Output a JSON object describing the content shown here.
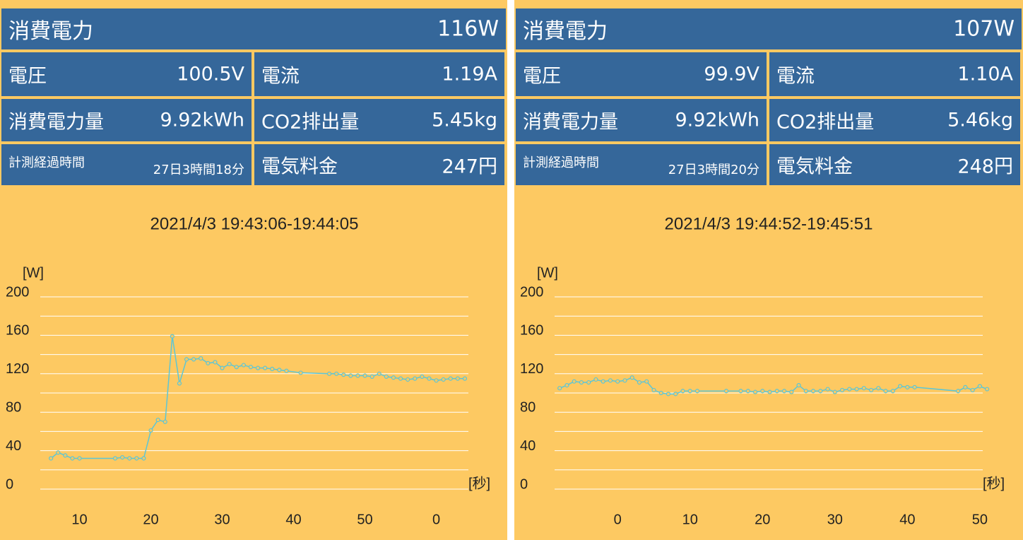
{
  "panels": [
    {
      "power": {
        "label": "消費電力",
        "value": "116W"
      },
      "tiles": [
        {
          "label": "電圧",
          "value": "100.5V"
        },
        {
          "label": "電流",
          "value": "1.19A"
        },
        {
          "label": "消費電力量",
          "value": "9.92kWh"
        },
        {
          "label": "CO2排出量",
          "value": "5.45kg"
        },
        {
          "label": "計測経過時間",
          "value": "27日3時間18分"
        },
        {
          "label": "電気料金",
          "value": "247円"
        }
      ]
    },
    {
      "power": {
        "label": "消費電力",
        "value": "107W"
      },
      "tiles": [
        {
          "label": "電圧",
          "value": "99.9V"
        },
        {
          "label": "電流",
          "value": "1.10A"
        },
        {
          "label": "消費電力量",
          "value": "9.92kWh"
        },
        {
          "label": "CO2排出量",
          "value": "5.46kg"
        },
        {
          "label": "計測経過時間",
          "value": "27日3時間20分"
        },
        {
          "label": "電気料金",
          "value": "248円"
        }
      ]
    }
  ],
  "chart_data": [
    {
      "type": "line",
      "title": "2021/4/3 19:43:06-19:44:05",
      "ylabel": "[W]",
      "xlabel": "[秒]",
      "color": "#5cc6d6",
      "x": [
        6,
        7,
        8,
        9,
        10,
        15,
        16,
        17,
        18,
        19,
        20,
        21,
        22,
        23,
        24,
        25,
        26,
        27,
        28,
        29,
        30,
        31,
        32,
        33,
        34,
        35,
        36,
        37,
        38,
        39,
        41,
        45,
        46,
        47,
        48,
        49,
        50,
        51,
        52,
        53,
        54,
        55,
        56,
        57,
        58,
        59,
        60,
        61,
        62,
        63,
        64
      ],
      "values": [
        32,
        38,
        35,
        32,
        32,
        32,
        33,
        32,
        32,
        32,
        61,
        72,
        70,
        159,
        110,
        135,
        135,
        136,
        131,
        132,
        126,
        130,
        127,
        129,
        127,
        126,
        126,
        125,
        124,
        123,
        121,
        120,
        120,
        119,
        118,
        118,
        118,
        117,
        120,
        117,
        116,
        115,
        114,
        115,
        117,
        115,
        113,
        114,
        115,
        115,
        115
      ],
      "xlim": [
        4.5,
        64.5
      ],
      "xticks": [
        10,
        20,
        30,
        40,
        50,
        {
          "value": 60,
          "label": "0"
        }
      ],
      "ylim": [
        0,
        200
      ],
      "yticks": [
        0,
        40,
        80,
        120,
        160,
        200
      ],
      "ygrid": [
        0,
        20,
        40,
        60,
        80,
        100,
        120,
        140,
        160,
        180,
        200
      ]
    },
    {
      "type": "line",
      "title": "2021/4/3 19:44:52-19:45:51",
      "ylabel": "[W]",
      "xlabel": "[秒]",
      "color": "#5cc6d6",
      "x": [
        -8,
        -7,
        -6,
        -5,
        -4,
        -3,
        -2,
        -1,
        0,
        1,
        2,
        3,
        4,
        5,
        6,
        7,
        8,
        9,
        10,
        11,
        15,
        17,
        18,
        19,
        20,
        21,
        22,
        23,
        24,
        25,
        26,
        27,
        28,
        29,
        30,
        31,
        32,
        33,
        34,
        35,
        36,
        37,
        38,
        39,
        40,
        41,
        47,
        48,
        49,
        50,
        51
      ],
      "values": [
        105,
        108,
        112,
        111,
        111,
        114,
        112,
        113,
        112,
        113,
        116,
        111,
        112,
        103,
        100,
        99,
        99,
        102,
        102,
        102,
        102,
        102,
        102,
        101,
        102,
        101,
        102,
        102,
        101,
        108,
        102,
        102,
        102,
        104,
        101,
        103,
        104,
        104,
        105,
        103,
        105,
        102,
        102,
        107,
        106,
        106,
        102,
        106,
        103,
        107,
        104
      ],
      "xlim": [
        -8.7,
        50.4
      ],
      "xticks": [
        0,
        10,
        20,
        30,
        40,
        50
      ],
      "ylim": [
        0,
        200
      ],
      "yticks": [
        0,
        40,
        80,
        120,
        160,
        200
      ],
      "ygrid": [
        0,
        20,
        40,
        60,
        80,
        100,
        120,
        140,
        160,
        180,
        200
      ]
    }
  ]
}
